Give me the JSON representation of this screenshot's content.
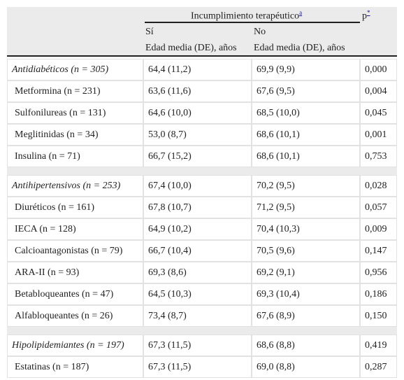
{
  "header": {
    "group": "Incumplimiento terapéutico",
    "group_note": "a",
    "p": "p",
    "p_note": "*",
    "si": "Sí",
    "no": "No",
    "sub_si": "Edad media (DE), años",
    "sub_no": "Edad media (DE), años"
  },
  "sections": [
    {
      "rows": [
        [
          "Antidiabéticos (n = 305)",
          "64,4 (11,2)",
          "69,9 (9,9)",
          "0,000"
        ],
        [
          "Metformina (n = 231)",
          "63,6 (11,6)",
          "67,6 (9,5)",
          "0,004"
        ],
        [
          "Sulfonilureas (n = 131)",
          "64,6 (10,0)",
          "68,5 (10,0)",
          "0,045"
        ],
        [
          "Meglitinidas (n = 34)",
          "53,0 (8,7)",
          "68,6 (10,1)",
          "0,001"
        ],
        [
          "Insulina (n = 71)",
          "66,7 (15,2)",
          "68,6 (10,1)",
          "0,753"
        ]
      ]
    },
    {
      "rows": [
        [
          "Antihipertensivos (n = 253)",
          "67,4 (10,0)",
          "70,2 (9,5)",
          "0,028"
        ],
        [
          "Diuréticos (n = 161)",
          "67,8 (10,7)",
          "71,2 (9,5)",
          "0,057"
        ],
        [
          "IECA (n = 128)",
          "64,9 (10,2)",
          "70,4 (10,3)",
          "0,009"
        ],
        [
          "Calcioantagonistas (n = 79)",
          "66,7 (10,4)",
          "70,5 (9,6)",
          "0,147"
        ],
        [
          "ARA-II (n = 93)",
          "69,3 (8,6)",
          "69,2 (9,1)",
          "0,956"
        ],
        [
          "Betabloqueantes (n = 47)",
          "64,5 (10,3)",
          "69,3 (10,4)",
          "0,186"
        ],
        [
          "Alfabloqueantes (n = 26)",
          "73,4 (8,7)",
          "67,6 (8,9)",
          "0,150"
        ]
      ]
    },
    {
      "rows": [
        [
          "Hipolipidemiantes (n = 197)",
          "67,3 (11,5)",
          "68,6 (8,8)",
          "0,419"
        ],
        [
          "Estatinas (n = 187)",
          "67,3 (11,5)",
          "69,0 (8,8)",
          "0,287"
        ]
      ]
    }
  ]
}
